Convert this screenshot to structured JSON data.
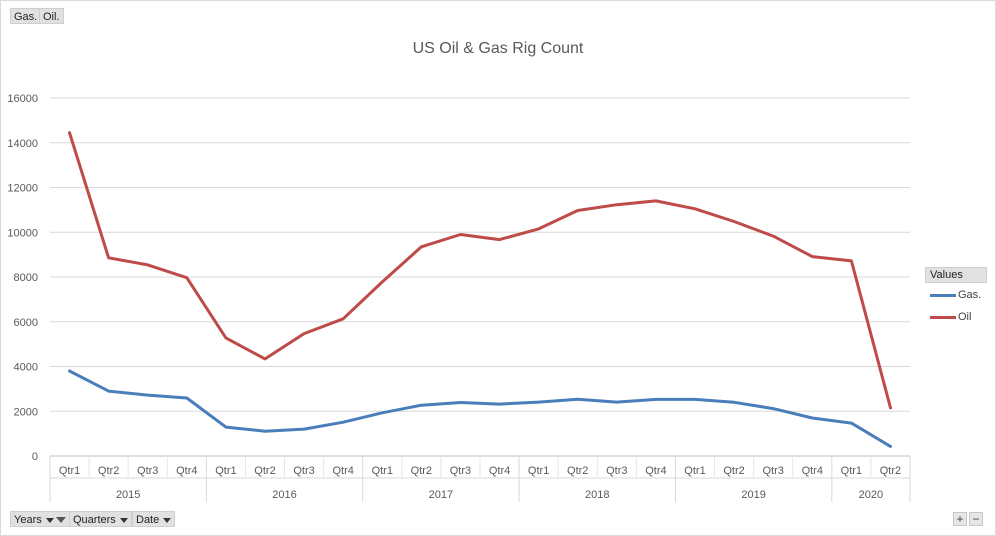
{
  "filter_buttons": [
    {
      "label": "Gas."
    },
    {
      "label": "Oil."
    }
  ],
  "axis_buttons": [
    {
      "label": "Years",
      "filtered": true
    },
    {
      "label": "Quarters",
      "filtered": false
    },
    {
      "label": "Date",
      "filtered": false
    }
  ],
  "zoom": {
    "plus": "+",
    "minus": "−"
  },
  "legend": {
    "title": "Values",
    "items": [
      {
        "name": "Gas.",
        "color": "#4a7ebb"
      },
      {
        "name": "Oil",
        "color": "#be4b48"
      }
    ]
  },
  "chart_data": {
    "type": "line",
    "title": "US Oil & Gas Rig Count",
    "xlabel": "",
    "ylabel": "",
    "ylim": [
      0,
      16000
    ],
    "yticks": [
      0,
      2000,
      4000,
      6000,
      8000,
      10000,
      12000,
      14000,
      16000
    ],
    "grid": true,
    "legend_position": "right",
    "groups": [
      {
        "year": "2015",
        "quarters": [
          "Qtr1",
          "Qtr2",
          "Qtr3",
          "Qtr4"
        ]
      },
      {
        "year": "2016",
        "quarters": [
          "Qtr1",
          "Qtr2",
          "Qtr3",
          "Qtr4"
        ]
      },
      {
        "year": "2017",
        "quarters": [
          "Qtr1",
          "Qtr2",
          "Qtr3",
          "Qtr4"
        ]
      },
      {
        "year": "2018",
        "quarters": [
          "Qtr1",
          "Qtr2",
          "Qtr3",
          "Qtr4"
        ]
      },
      {
        "year": "2019",
        "quarters": [
          "Qtr1",
          "Qtr2",
          "Qtr3",
          "Qtr4"
        ]
      },
      {
        "year": "2020",
        "quarters": [
          "Qtr1",
          "Qtr2"
        ]
      }
    ],
    "series": [
      {
        "name": "Gas.",
        "color": "#4a7ebb",
        "values": [
          3800,
          2900,
          2720,
          2590,
          1290,
          1110,
          1200,
          1510,
          1930,
          2270,
          2390,
          2320,
          2410,
          2540,
          2410,
          2530,
          2530,
          2400,
          2120,
          1700,
          1470,
          430
        ]
      },
      {
        "name": "Oil",
        "color": "#be4b48",
        "values": [
          14450,
          8860,
          8540,
          7970,
          5280,
          4340,
          5470,
          6130,
          7780,
          9350,
          9900,
          9670,
          10150,
          10970,
          11230,
          11400,
          11050,
          10480,
          9830,
          8910,
          8720,
          2150
        ]
      }
    ]
  }
}
